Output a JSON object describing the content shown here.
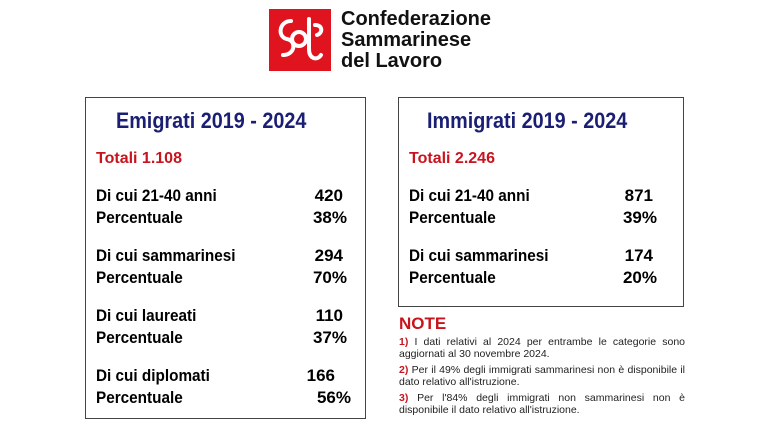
{
  "logo": {
    "line1": "Confederazione",
    "line2": "Sammarinese",
    "line3": "del Lavoro",
    "color": "#e0141e"
  },
  "emigrati": {
    "title": "Emigrati 2019 - 2024",
    "totale": "Totali 1.108",
    "rows": [
      {
        "label": "Di cui 21-40 anni",
        "value": "420"
      },
      {
        "label": "Percentuale",
        "value": "38%"
      },
      {
        "label": "Di cui sammarinesi",
        "value": "294"
      },
      {
        "label": "Percentuale",
        "value": "70%"
      },
      {
        "label": "Di cui laureati",
        "value": "110"
      },
      {
        "label": "Percentuale",
        "value": "37%"
      },
      {
        "label": "Di cui diplomati",
        "value": "166"
      },
      {
        "label": "Percentuale",
        "value": "56%"
      }
    ]
  },
  "immigrati": {
    "title": "Immigrati 2019 - 2024",
    "totale": "Totali 2.246",
    "rows": [
      {
        "label": "Di cui 21-40 anni",
        "value": "871"
      },
      {
        "label": "Percentuale",
        "value": "39%"
      },
      {
        "label": "Di cui sammarinesi",
        "value": "174"
      },
      {
        "label": "Percentuale",
        "value": "20%"
      }
    ]
  },
  "note": {
    "title": "NOTE",
    "items": [
      {
        "num": "1)",
        "text": "I dati relativi al 2024 per entrambe le categorie sono aggiornati al 30 novembre 2024."
      },
      {
        "num": "2)",
        "text": "Per il 49% degli immigrati sammarinesi non è disponibile il dato relativo all'istruzione."
      },
      {
        "num": "3)",
        "text": "Per l'84% degli immigrati non sammarinesi non è disponibile il dato relativo all'istruzione."
      }
    ]
  }
}
